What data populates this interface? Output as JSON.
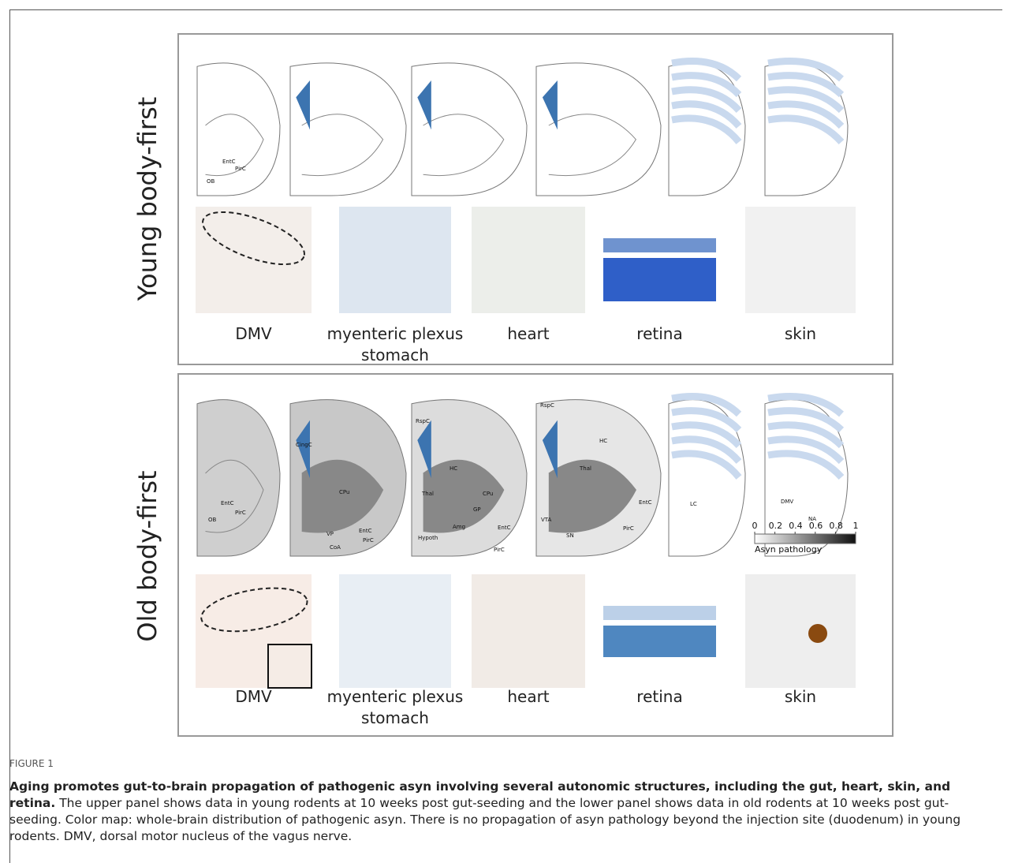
{
  "figure": {
    "panels": [
      {
        "label": "Young body-first",
        "tissues": [
          {
            "lines": [
              "DMV"
            ]
          },
          {
            "lines": [
              "myenteric plexus",
              "stomach"
            ]
          },
          {
            "lines": [
              "heart"
            ]
          },
          {
            "lines": [
              "retina"
            ]
          },
          {
            "lines": [
              "skin"
            ]
          }
        ],
        "regions": [
          "OB",
          "EntC",
          "PirC"
        ]
      },
      {
        "label": "Old body-first",
        "tissues": [
          {
            "lines": [
              "DMV"
            ]
          },
          {
            "lines": [
              "myenteric plexus",
              "stomach"
            ]
          },
          {
            "lines": [
              "heart"
            ]
          },
          {
            "lines": [
              "retina"
            ]
          },
          {
            "lines": [
              "skin"
            ]
          }
        ],
        "regions": [
          "OB",
          "EntC",
          "PirC",
          "CingC",
          "CPu",
          "VP",
          "EntC",
          "PirC",
          "CoA",
          "RspC",
          "HC",
          "Thal",
          "CPu",
          "GP",
          "Hypoth",
          "Amg",
          "EntC",
          "PirC",
          "RspC",
          "HC",
          "Thal",
          "VTA",
          "SN",
          "EntC",
          "PirC",
          "LC",
          "DMV",
          "NA"
        ]
      }
    ],
    "colorbar": {
      "ticks": [
        0,
        0.2,
        0.4,
        0.6,
        0.8,
        1
      ],
      "label": "Asyn pathology"
    },
    "caption": {
      "title": "FIGURE 1",
      "lead": "Aging promotes gut-to-brain propagation of pathogenic asyn involving several autonomic structures, including the gut, heart, skin, and retina.",
      "text": "The upper panel shows data in young rodents at 10 weeks post gut-seeding and the lower panel shows data in old rodents at 10 weeks post gut-seeding. Color map: whole-brain distribution of pathogenic asyn. There is no propagation of asyn pathology beyond the injection site (duodenum) in young rodents. DMV, dorsal motor nucleus of the vagus nerve."
    }
  }
}
